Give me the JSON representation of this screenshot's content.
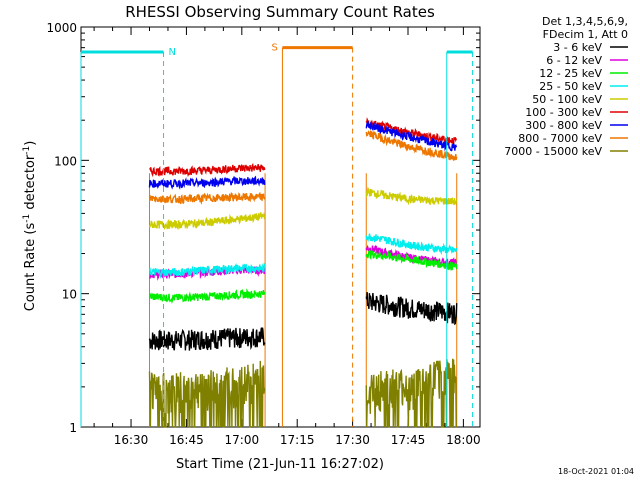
{
  "chart_data": {
    "type": "line",
    "title": "RHESSI Observing Summary Count Rates",
    "xlabel": "Start Time (21-Jun-11 16:27:02)",
    "ylabel": "Count Rate (s",
    "ylabel_sup1": "-1",
    "ylabel_mid": " detector",
    "ylabel_sup2": "-1",
    "ylabel_end": ")",
    "y_scale": "log",
    "ylim": [
      1,
      1000
    ],
    "y_ticks": [
      {
        "value": 1,
        "label": "1"
      },
      {
        "value": 10,
        "label": "10"
      },
      {
        "value": 100,
        "label": "100"
      },
      {
        "value": 1000,
        "label": "1000"
      }
    ],
    "xlim_minutes": [
      16.45,
      124.5
    ],
    "x_ticks": [
      {
        "minute": 30,
        "label": "16:30"
      },
      {
        "minute": 45,
        "label": "16:45"
      },
      {
        "minute": 60,
        "label": "17:00"
      },
      {
        "minute": 75,
        "label": "17:15"
      },
      {
        "minute": 90,
        "label": "17:30"
      },
      {
        "minute": 105,
        "label": "17:45"
      },
      {
        "minute": 120,
        "label": "18:00"
      }
    ],
    "legend_header": [
      "Det 1,3,4,5,6,9,",
      "FDecim 1, Att 0"
    ],
    "series": [
      {
        "name": "3 - 6 keV",
        "color": "#000000",
        "seg1": [
          4.5,
          4.5,
          4.6,
          4.7,
          4.8
        ],
        "seg2": [
          8.8,
          8.3,
          7.8,
          7.5,
          7.2
        ]
      },
      {
        "name": "6 - 12 keV",
        "color": "#dd00dd",
        "seg1": [
          14,
          14,
          14.5,
          15,
          15
        ],
        "seg2": [
          22,
          20,
          18.5,
          17.5,
          17
        ]
      },
      {
        "name": "12 - 25 keV",
        "color": "#00ee00",
        "seg1": [
          9.5,
          9.3,
          9.5,
          9.8,
          10
        ],
        "seg2": [
          20,
          19,
          18,
          17,
          16
        ]
      },
      {
        "name": "25 - 50 keV",
        "color": "#00eeee",
        "seg1": [
          14.5,
          14.5,
          15,
          15.5,
          15.5
        ],
        "seg2": [
          27,
          25,
          23,
          22,
          21
        ]
      },
      {
        "name": "50 - 100 keV",
        "color": "#cccc00",
        "seg1": [
          33,
          33,
          34,
          36,
          38
        ],
        "seg2": [
          58,
          54,
          51,
          50,
          49
        ]
      },
      {
        "name": "100 - 300 keV",
        "color": "#dd0000",
        "seg1": [
          83,
          83,
          84,
          87,
          88
        ],
        "seg2": [
          190,
          175,
          160,
          148,
          140
        ]
      },
      {
        "name": "300 - 800 keV",
        "color": "#0000ee",
        "seg1": [
          67,
          67,
          68,
          70,
          70
        ],
        "seg2": [
          185,
          165,
          148,
          135,
          125
        ]
      },
      {
        "name": "800 - 7000 keV",
        "color": "#ee7700",
        "seg1": [
          52,
          51,
          52,
          53,
          53
        ],
        "seg2": [
          160,
          140,
          125,
          115,
          105
        ]
      },
      {
        "name": "7000 - 15000 keV",
        "color": "#808000",
        "seg1": [
          2,
          1.9,
          2,
          2.1,
          2.4
        ],
        "seg2": [
          1.9,
          2,
          2,
          2.3,
          2.7
        ]
      }
    ],
    "segment_times_minutes": {
      "seg1": [
        35.5,
        42,
        50,
        58,
        66
      ],
      "seg2": [
        94,
        100,
        106,
        112,
        118
      ]
    },
    "data_intervals": [
      {
        "start": 35.0,
        "end": 66.3
      },
      {
        "start": 93.7,
        "end": 118.2
      }
    ],
    "flags": [
      {
        "label": "N",
        "color": "#00dddd",
        "bar_start": 16.45,
        "bar_end": 38.8,
        "level": 650,
        "dashed_at": 38.8
      },
      {
        "label": "S",
        "color": "#ee7700",
        "bar_start": 71.0,
        "bar_end": 90.0,
        "level": 700,
        "solid_at": 71.0,
        "dashed_at": 90.0
      },
      {
        "label": "",
        "color": "#00dddd",
        "bar_start": 115.5,
        "bar_end": 122.5,
        "level": 650,
        "solid_at": 115.5,
        "dashed_at": 122.5
      }
    ]
  },
  "footer_date": "18-Oct-2021 01:04"
}
